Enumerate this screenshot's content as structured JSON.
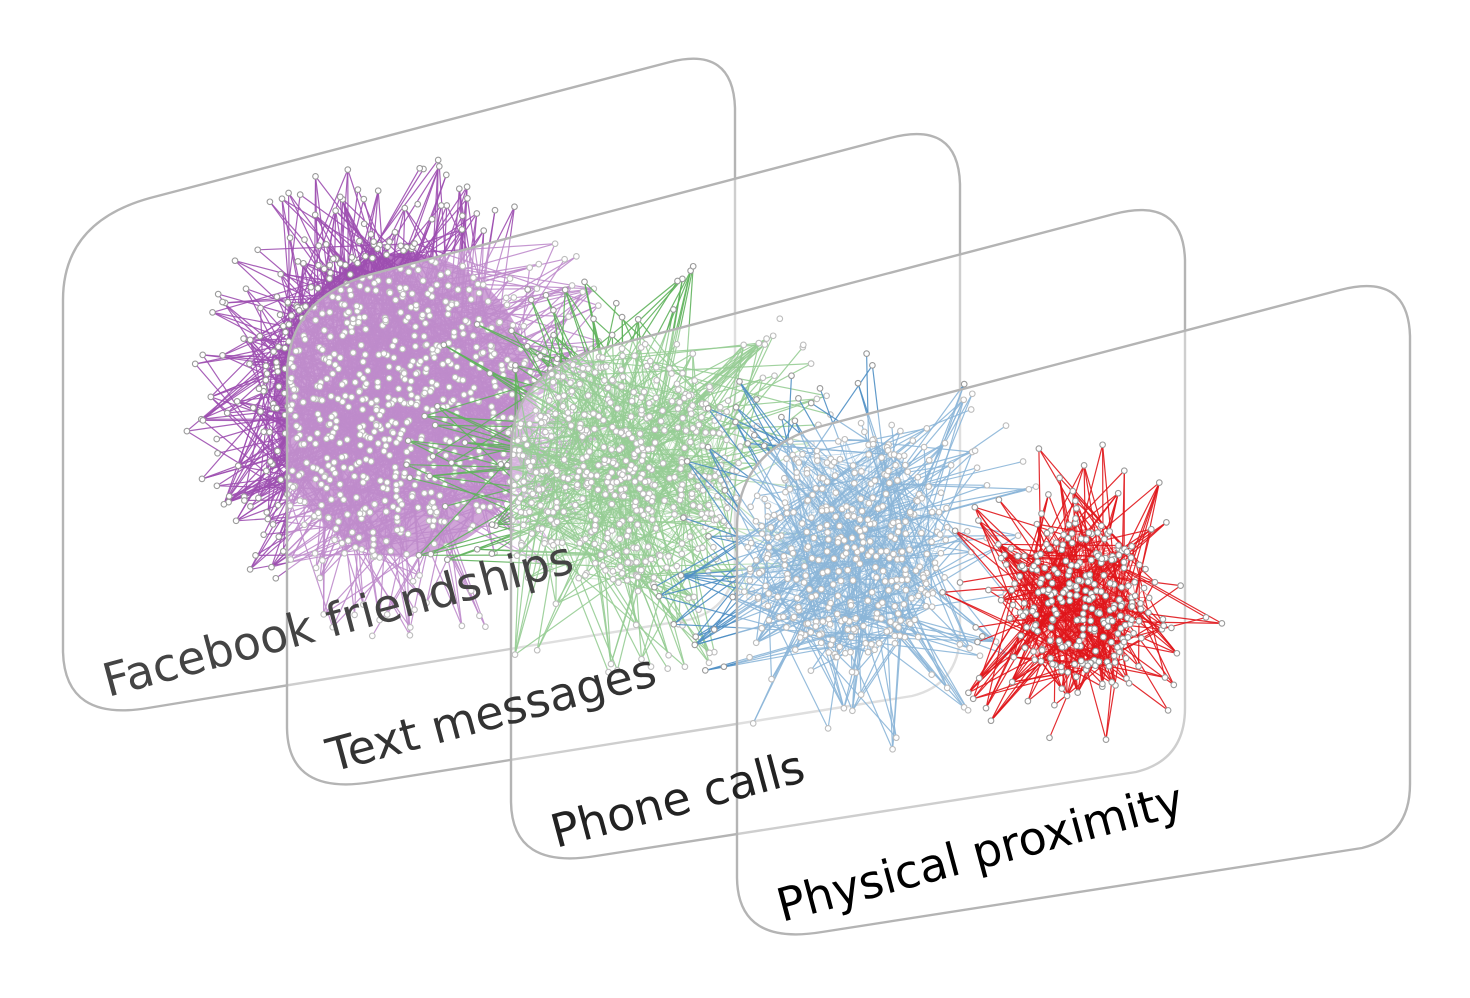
{
  "layers": [
    {
      "label": "Facebook friendships",
      "edge_color": "#9d4fb0",
      "fill_color": "#b774c4",
      "label_color": "#444444",
      "nodes": 820,
      "edges": 1500,
      "spread": 1.0
    },
    {
      "label": "Text messages",
      "edge_color": "#5fb35c",
      "label_color": "#333333",
      "nodes": 520,
      "edges": 700,
      "spread": 1.0
    },
    {
      "label": "Phone calls",
      "edge_color": "#4f8fc4",
      "label_color": "#222222",
      "nodes": 420,
      "edges": 620,
      "spread": 1.0
    },
    {
      "label": "Physical proximity",
      "edge_color": "#e0161b",
      "label_color": "#000000",
      "nodes": 300,
      "edges": 600,
      "spread": 1.0
    }
  ]
}
